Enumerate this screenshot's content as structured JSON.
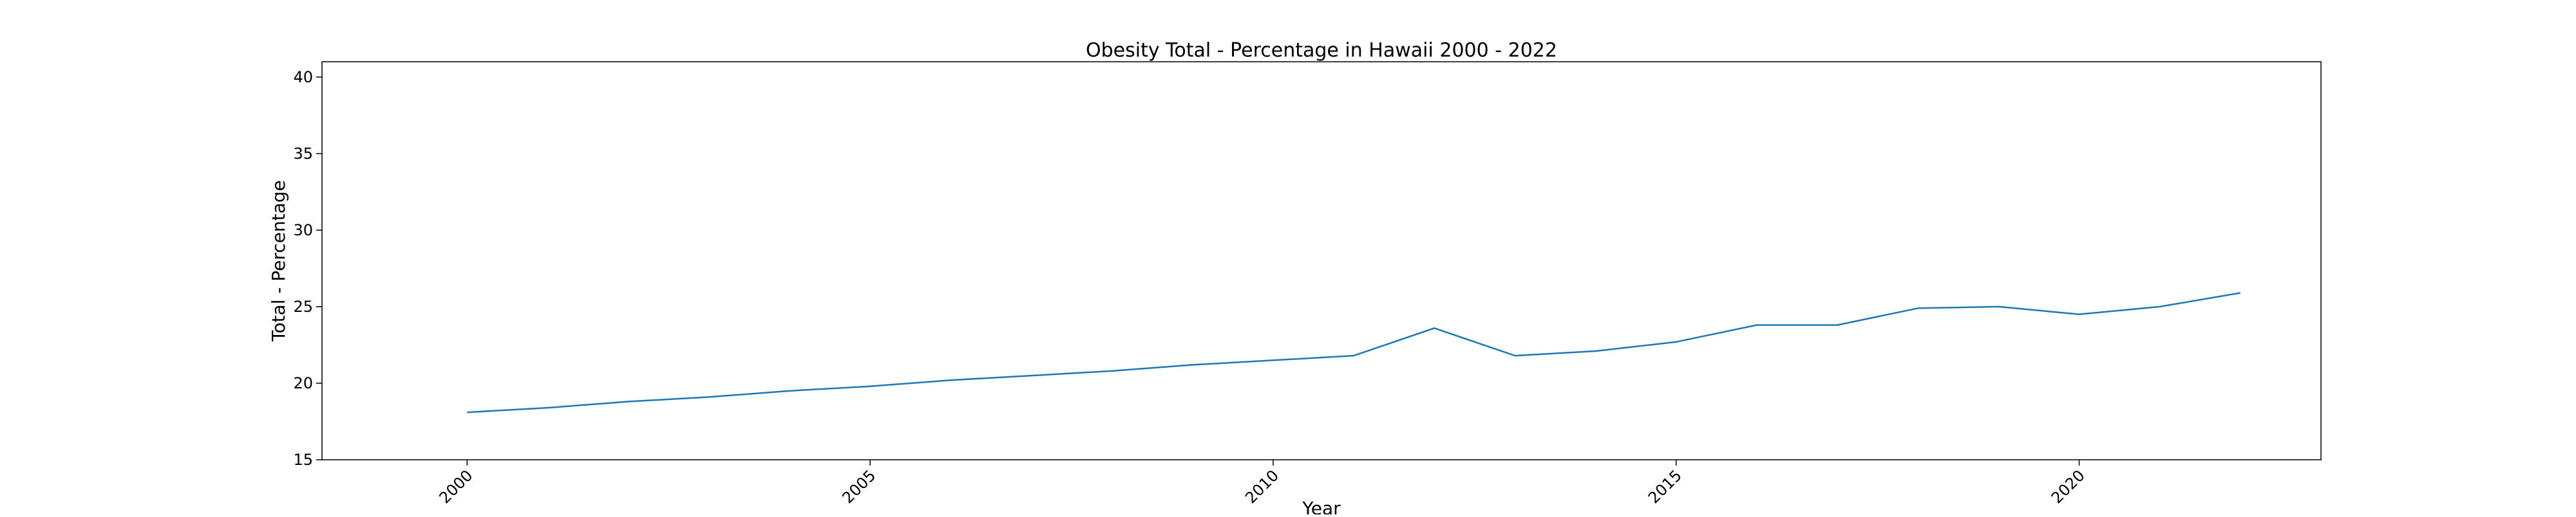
{
  "chart_data": {
    "type": "line",
    "title": "Obesity Total - Percentage in Hawaii 2000 - 2022",
    "xlabel": "Year",
    "ylabel": "Total - Percentage",
    "xlim": [
      1998.2,
      2023
    ],
    "ylim": [
      15,
      41
    ],
    "x_ticks": [
      2000,
      2005,
      2010,
      2015,
      2020
    ],
    "y_ticks": [
      15,
      20,
      25,
      30,
      35,
      40
    ],
    "grid": false,
    "series": [
      {
        "color": "#1f77b4",
        "x": [
          2000,
          2001,
          2002,
          2003,
          2004,
          2005,
          2006,
          2007,
          2008,
          2009,
          2010,
          2011,
          2012,
          2013,
          2014,
          2015,
          2016,
          2017,
          2018,
          2019,
          2020,
          2021,
          2022
        ],
        "values": [
          18.1,
          18.4,
          18.8,
          19.1,
          19.5,
          19.8,
          20.2,
          20.5,
          20.8,
          21.2,
          21.5,
          21.8,
          23.6,
          21.8,
          22.1,
          22.7,
          23.8,
          23.8,
          24.9,
          25.0,
          24.5,
          25.0,
          25.9
        ]
      }
    ]
  }
}
